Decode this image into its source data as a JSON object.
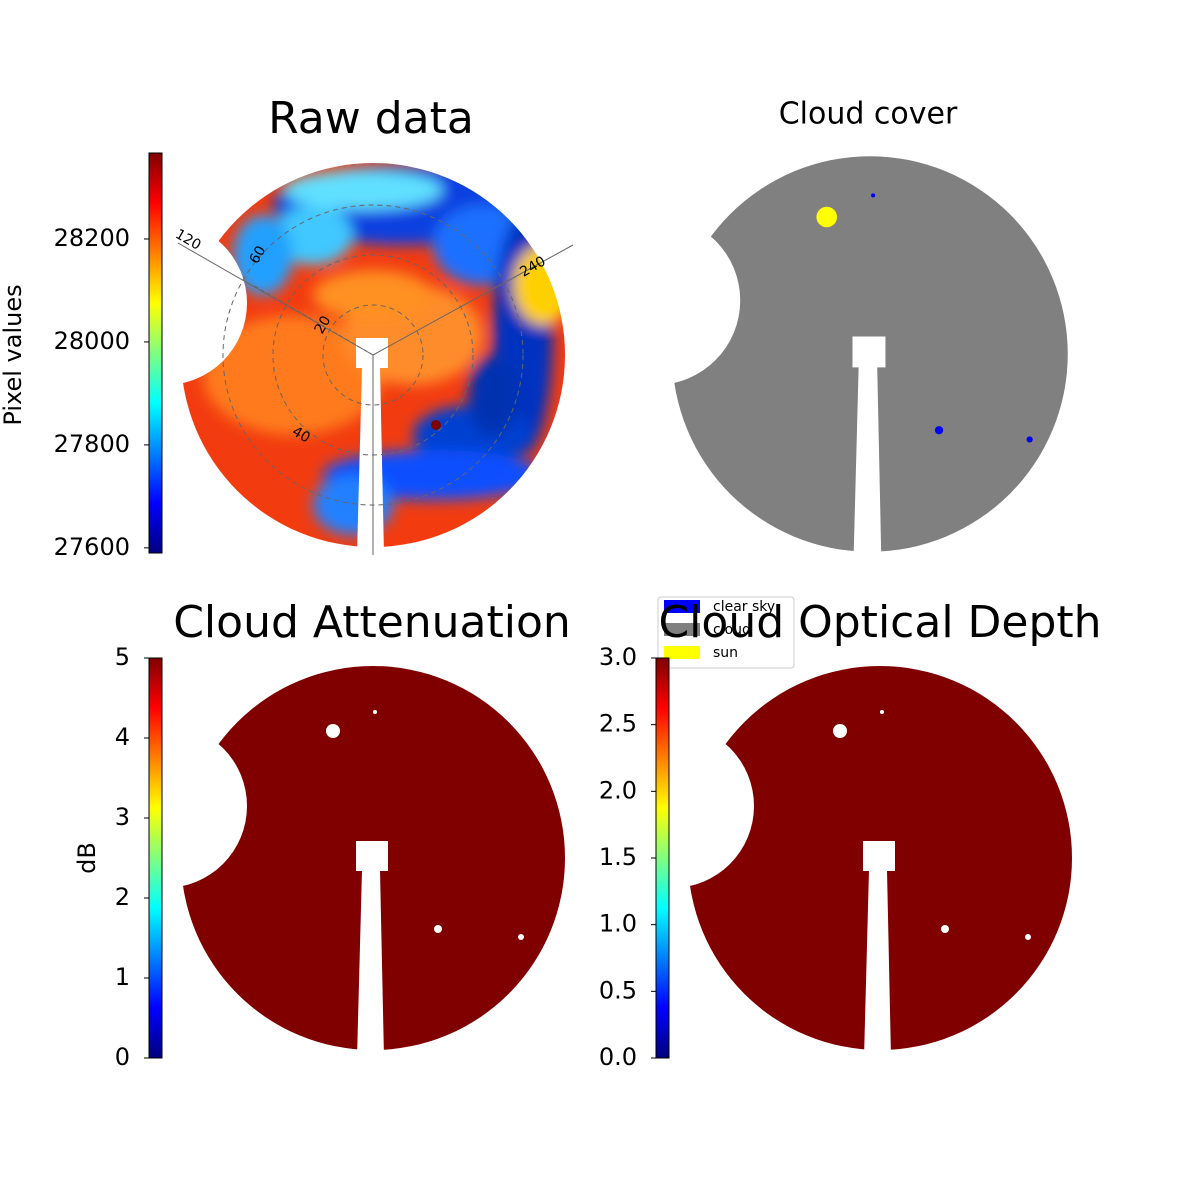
{
  "chart_data": [
    {
      "type": "image",
      "title": "Raw data",
      "colormap": "jet",
      "clabel": "Pixel values",
      "clim": [
        27590,
        28367
      ],
      "cticks": [
        27600,
        27800,
        28000,
        28200
      ],
      "annotations": [
        "120",
        "60",
        "20",
        "40",
        "240"
      ]
    },
    {
      "type": "image",
      "title": "Cloud cover",
      "color": "#808080",
      "series": [
        {
          "name": "clear sky",
          "color": "#0000ff"
        },
        {
          "name": "cloud",
          "color": "#808080"
        },
        {
          "name": "sun",
          "color": "#ffff00"
        }
      ]
    },
    {
      "type": "image",
      "title": "Cloud Attenuation",
      "colormap": "jet",
      "color": "#800000",
      "clabel": "dB",
      "clim": [
        0,
        5
      ],
      "cticks": [
        0,
        1,
        2,
        3,
        4,
        5
      ]
    },
    {
      "type": "image",
      "title": "Cloud Optical Depth",
      "colormap": "jet",
      "color": "#800000",
      "clim": [
        0,
        3
      ],
      "cticks": [
        {
          "value": 0,
          "label": "0.0"
        },
        0.5,
        {
          "value": 1,
          "label": "1.0"
        },
        1.5,
        {
          "value": 2,
          "label": "2.0"
        },
        2.5,
        {
          "value": 3,
          "label": "3.0"
        }
      ]
    }
  ]
}
